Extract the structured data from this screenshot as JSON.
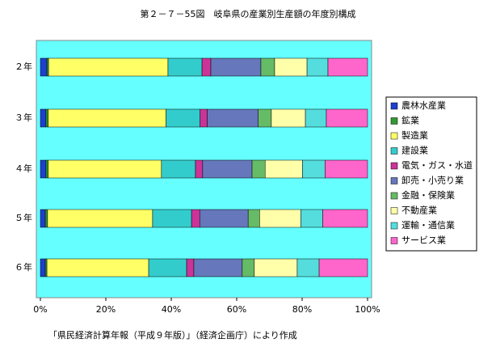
{
  "chart_data": {
    "type": "stacked_bar_horizontal",
    "title": "第２－７－55図　岐阜県の産業別生産額の年度別構成",
    "footnote": "「県民経済計算年報（平成９年版）」（経済企画庁）により作成",
    "categories": [
      "２年",
      "３年",
      "４年",
      "５年",
      "６年"
    ],
    "series": [
      {
        "name": "農林水産業",
        "color": "#1f3fcf",
        "values": [
          2.0,
          1.7,
          1.7,
          1.5,
          1.5
        ]
      },
      {
        "name": "鉱業",
        "color": "#339933",
        "values": [
          0.5,
          0.7,
          0.7,
          0.7,
          0.5
        ]
      },
      {
        "name": "製造業",
        "color": "#ffff66",
        "values": [
          36.5,
          36.0,
          34.6,
          32.1,
          31.1
        ]
      },
      {
        "name": "建設業",
        "color": "#33cccc",
        "values": [
          10.4,
          10.4,
          10.4,
          11.9,
          11.6
        ]
      },
      {
        "name": "電気・ガス・水道",
        "color": "#cc3399",
        "values": [
          2.7,
          2.2,
          2.2,
          2.5,
          2.2
        ]
      },
      {
        "name": "卸売・小売り業",
        "color": "#6677bb",
        "values": [
          15.3,
          15.6,
          15.1,
          14.8,
          14.8
        ]
      },
      {
        "name": "金融・保険業",
        "color": "#66bb66",
        "values": [
          4.2,
          4.0,
          4.0,
          3.5,
          3.7
        ]
      },
      {
        "name": "不動産業",
        "color": "#ffffaa",
        "values": [
          9.9,
          10.4,
          11.4,
          12.6,
          13.1
        ]
      },
      {
        "name": "運輸・通信業",
        "color": "#55dddd",
        "values": [
          6.4,
          6.4,
          6.9,
          6.7,
          6.7
        ]
      },
      {
        "name": "サービス業",
        "color": "#ff66cc",
        "values": [
          12.1,
          12.6,
          13.0,
          13.7,
          14.8
        ]
      }
    ],
    "xlim": [
      0,
      100
    ],
    "xticks": [
      {
        "value": 0,
        "label": "0%"
      },
      {
        "value": 20,
        "label": "20%"
      },
      {
        "value": 40,
        "label": "40%"
      },
      {
        "value": 60,
        "label": "60%"
      },
      {
        "value": 80,
        "label": "80%"
      },
      {
        "value": 100,
        "label": "100%"
      }
    ]
  }
}
